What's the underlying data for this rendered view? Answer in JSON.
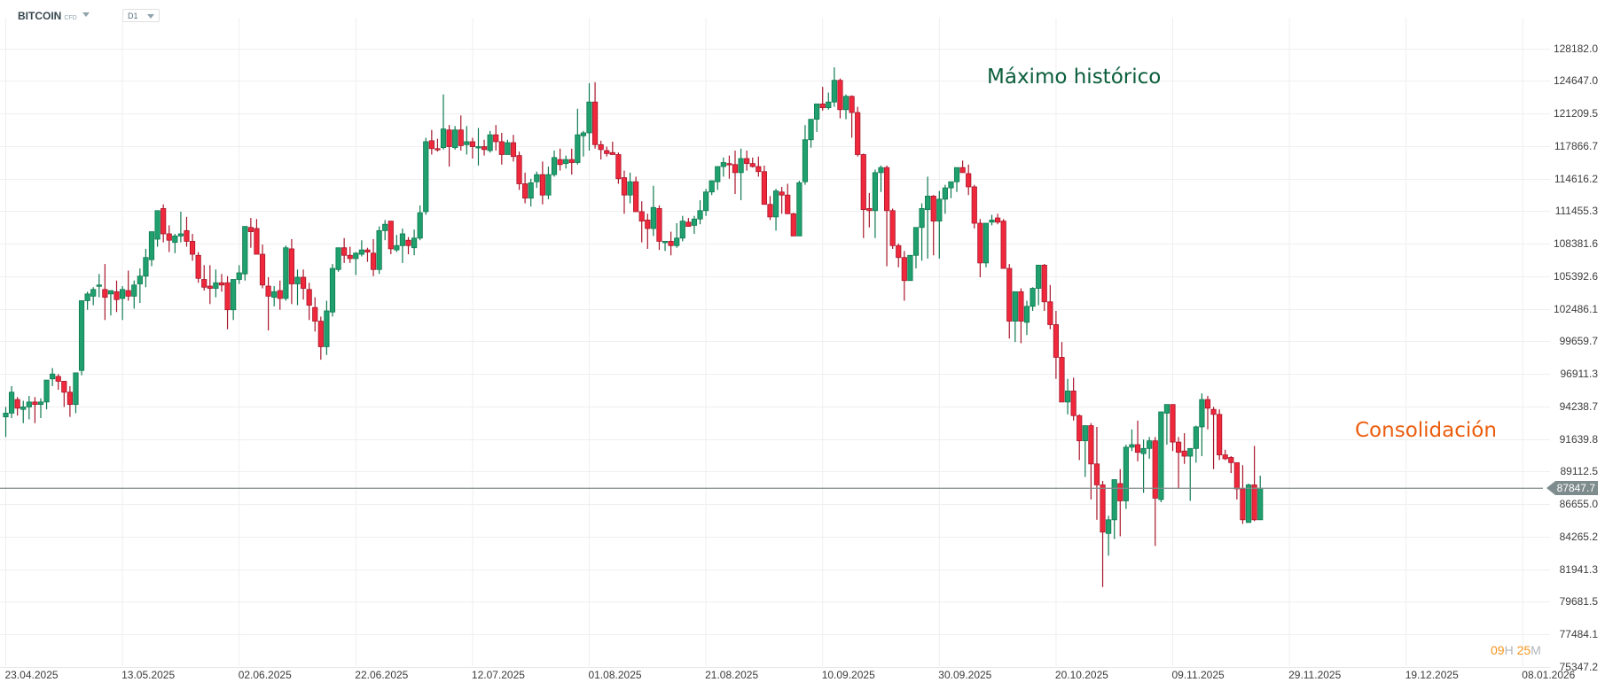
{
  "header": {
    "symbol": "BITCOIN",
    "symbol_type": "CFD",
    "timeframe": "D1"
  },
  "colors": {
    "bull": "#1fa06e",
    "bull_border": "#0f7a50",
    "bear": "#f0283c",
    "bear_border": "#a8172b",
    "grid": "#efefef",
    "price_line": "#7f8c8d",
    "annotation_high": "#0a5e3c",
    "annotation_consolidation": "#ec5d0e",
    "countdown_number": "#f7941d"
  },
  "annotations": {
    "ath": "Máximo histórico",
    "consolidation": "Consolidación"
  },
  "current_price": "87847.7",
  "countdown": {
    "h_num": "09",
    "h_unit": "H",
    "m_num": "25",
    "m_unit": "M"
  },
  "chart_data": {
    "type": "candlestick",
    "title": "BITCOIN CFD D1",
    "xlabel": "",
    "ylabel": "",
    "scale": "log",
    "ylim": [
      75347.2,
      128182.0
    ],
    "y_ticks": [
      "128182.0",
      "124647.0",
      "121209.5",
      "117866.7",
      "114616.2",
      "111455.3",
      "108381.6",
      "105392.6",
      "102486.1",
      "99659.7",
      "96911.3",
      "94238.7",
      "91639.8",
      "89112.5",
      "86655.0",
      "84265.2",
      "81941.3",
      "79681.5",
      "77484.1",
      "75347.2"
    ],
    "x_ticks": [
      "23.04.2025",
      "13.05.2025",
      "02.06.2025",
      "22.06.2025",
      "12.07.2025",
      "01.08.2025",
      "21.08.2025",
      "10.09.2025",
      "30.09.2025",
      "20.10.2025",
      "09.11.2025",
      "29.11.2025",
      "19.12.2025",
      "08.01.2026"
    ],
    "last_close": 87847.7,
    "legend": [],
    "candles_ohlc": [
      [
        93400,
        94200,
        91800,
        93700
      ],
      [
        93700,
        95900,
        93300,
        95400
      ],
      [
        94800,
        95000,
        93500,
        94100
      ],
      [
        94000,
        94700,
        92900,
        94200
      ],
      [
        94200,
        95100,
        93200,
        94600
      ],
      [
        94600,
        95000,
        92900,
        94400
      ],
      [
        94400,
        94900,
        93300,
        94600
      ],
      [
        94600,
        96300,
        94000,
        96400
      ],
      [
        96500,
        97400,
        95900,
        96900
      ],
      [
        96700,
        96900,
        95600,
        96300
      ],
      [
        96300,
        96200,
        94200,
        95400
      ],
      [
        95400,
        95900,
        93400,
        94400
      ],
      [
        94400,
        97000,
        93700,
        97000
      ],
      [
        97200,
        103200,
        96800,
        103200
      ],
      [
        103200,
        104000,
        102400,
        103800
      ],
      [
        103600,
        104400,
        102800,
        104200
      ],
      [
        104500,
        105600,
        103500,
        104600
      ],
      [
        104200,
        106500,
        101500,
        103500
      ],
      [
        103800,
        104000,
        101900,
        104100
      ],
      [
        104000,
        105000,
        102200,
        103300
      ],
      [
        103400,
        104500,
        101500,
        104200
      ],
      [
        104100,
        105900,
        103200,
        103600
      ],
      [
        103600,
        105000,
        102500,
        104600
      ],
      [
        104700,
        106100,
        103000,
        105400
      ],
      [
        105400,
        107900,
        104400,
        107100
      ],
      [
        106900,
        108800,
        106300,
        109500
      ],
      [
        108800,
        111500,
        108100,
        111500
      ],
      [
        111700,
        112100,
        108500,
        109300
      ],
      [
        109300,
        110100,
        107600,
        108700
      ],
      [
        108500,
        109300,
        107500,
        109100
      ],
      [
        109100,
        111400,
        108500,
        109300
      ],
      [
        109600,
        110900,
        108100,
        108600
      ],
      [
        108600,
        109300,
        106800,
        107400
      ],
      [
        107300,
        107600,
        104800,
        105200
      ],
      [
        105100,
        106400,
        104100,
        104400
      ],
      [
        104500,
        106400,
        102900,
        104300
      ],
      [
        104300,
        106000,
        103500,
        104800
      ],
      [
        104800,
        105600,
        104000,
        104600
      ],
      [
        104800,
        105400,
        100700,
        102400
      ],
      [
        102400,
        104800,
        101500,
        105100
      ],
      [
        105100,
        106400,
        104700,
        105700
      ],
      [
        105600,
        109800,
        105000,
        110000
      ],
      [
        109900,
        110800,
        108000,
        109500
      ],
      [
        109800,
        110700,
        107800,
        107400
      ],
      [
        107400,
        108300,
        104300,
        104600
      ],
      [
        104500,
        105300,
        100600,
        103600
      ],
      [
        103500,
        104500,
        102700,
        104000
      ],
      [
        104100,
        105000,
        102400,
        103400
      ],
      [
        103400,
        108200,
        103200,
        108000
      ],
      [
        107900,
        108800,
        102900,
        104700
      ],
      [
        104700,
        106000,
        102800,
        105300
      ],
      [
        105300,
        106000,
        103300,
        104300
      ],
      [
        104200,
        104800,
        101500,
        102800
      ],
      [
        102600,
        103500,
        100500,
        101400
      ],
      [
        101400,
        101800,
        98100,
        99200
      ],
      [
        99200,
        103200,
        98500,
        102300
      ],
      [
        102200,
        106500,
        101800,
        106100
      ],
      [
        106000,
        107800,
        105800,
        108000
      ],
      [
        108000,
        108900,
        106600,
        107300
      ],
      [
        107300,
        108100,
        106600,
        107000
      ],
      [
        107000,
        107600,
        105500,
        107500
      ],
      [
        107400,
        108700,
        107200,
        107800
      ],
      [
        107800,
        108000,
        106700,
        107600
      ],
      [
        107500,
        108800,
        105400,
        106000
      ],
      [
        106000,
        110000,
        105600,
        109600
      ],
      [
        109600,
        110600,
        108700,
        110200
      ],
      [
        110500,
        110500,
        107400,
        107900
      ],
      [
        107800,
        109200,
        107600,
        108200
      ],
      [
        108200,
        109800,
        106600,
        109300
      ],
      [
        108700,
        109000,
        107400,
        108200
      ],
      [
        108000,
        109700,
        107300,
        108900
      ],
      [
        108900,
        112000,
        108700,
        111300
      ],
      [
        111400,
        118700,
        111100,
        118300
      ],
      [
        118400,
        119500,
        117000,
        117600
      ],
      [
        117600,
        118600,
        117300,
        117500
      ],
      [
        117700,
        123200,
        117500,
        119600
      ],
      [
        119500,
        120000,
        115800,
        117800
      ],
      [
        117700,
        119900,
        117500,
        119500
      ],
      [
        119500,
        121000,
        117400,
        117900
      ],
      [
        118000,
        119900,
        117000,
        118300
      ],
      [
        118300,
        118700,
        116600,
        117800
      ],
      [
        117800,
        119700,
        115900,
        117800
      ],
      [
        117800,
        118500,
        116900,
        117500
      ],
      [
        117400,
        119400,
        117200,
        119000
      ],
      [
        119000,
        120000,
        117400,
        118300
      ],
      [
        118300,
        119200,
        116000,
        117000
      ],
      [
        117000,
        118500,
        117000,
        118200
      ],
      [
        118200,
        119000,
        116300,
        116800
      ],
      [
        116900,
        117300,
        113500,
        114100
      ],
      [
        114100,
        115200,
        112200,
        112700
      ],
      [
        112700,
        114600,
        111900,
        114200
      ],
      [
        114300,
        115300,
        113700,
        115000
      ],
      [
        115000,
        116300,
        112100,
        113000
      ],
      [
        113000,
        115800,
        112600,
        115000
      ],
      [
        115000,
        117400,
        114800,
        116700
      ],
      [
        116500,
        117600,
        115400,
        116000
      ],
      [
        116100,
        116900,
        115600,
        116500
      ],
      [
        116500,
        117600,
        115000,
        116200
      ],
      [
        116200,
        121700,
        116000,
        119000
      ],
      [
        118900,
        119400,
        116800,
        119200
      ],
      [
        119200,
        124400,
        117400,
        122400
      ],
      [
        122400,
        124500,
        117600,
        118000
      ],
      [
        118000,
        118400,
        116500,
        117500
      ],
      [
        117400,
        117800,
        116800,
        117100
      ],
      [
        117200,
        118300,
        117000,
        117000
      ],
      [
        117000,
        117200,
        114100,
        114600
      ],
      [
        114700,
        115400,
        111200,
        113000
      ],
      [
        113000,
        115200,
        112200,
        114300
      ],
      [
        114300,
        114800,
        111600,
        111400
      ],
      [
        111400,
        112400,
        108500,
        110500
      ],
      [
        110600,
        111200,
        107900,
        109800
      ],
      [
        109800,
        113900,
        109100,
        111800
      ],
      [
        111700,
        112000,
        107800,
        108600
      ],
      [
        108600,
        108600,
        107700,
        108600
      ],
      [
        108600,
        109500,
        107300,
        108200
      ],
      [
        108200,
        110300,
        108000,
        108900
      ],
      [
        108900,
        111000,
        108600,
        110500
      ],
      [
        110400,
        110800,
        110000,
        110000
      ],
      [
        110100,
        111000,
        109300,
        110700
      ],
      [
        110700,
        112500,
        110200,
        111500
      ],
      [
        111500,
        113600,
        111000,
        113300
      ],
      [
        113300,
        114300,
        113000,
        114400
      ],
      [
        114300,
        115200,
        113500,
        115800
      ],
      [
        115800,
        116700,
        114800,
        116200
      ],
      [
        116100,
        116900,
        114600,
        116000
      ],
      [
        116000,
        117400,
        113100,
        115200
      ],
      [
        115200,
        117600,
        112500,
        116600
      ],
      [
        116600,
        117400,
        115400,
        116100
      ],
      [
        116100,
        116700,
        115700,
        115800
      ],
      [
        115800,
        116800,
        114800,
        115300
      ],
      [
        115300,
        115900,
        113800,
        112100
      ],
      [
        112100,
        112900,
        110600,
        110900
      ],
      [
        110900,
        113600,
        109600,
        113400
      ],
      [
        113300,
        113800,
        111200,
        113000
      ],
      [
        113000,
        114100,
        111600,
        111200
      ],
      [
        111200,
        111300,
        109200,
        109100
      ],
      [
        109100,
        114400,
        109100,
        114200
      ],
      [
        114300,
        120000,
        114000,
        118500
      ],
      [
        118500,
        120600,
        117700,
        120600
      ],
      [
        120600,
        121700,
        119300,
        122200
      ],
      [
        122200,
        124000,
        121500,
        121800
      ],
      [
        121800,
        123400,
        121600,
        122400
      ],
      [
        122400,
        126100,
        121900,
        124700
      ],
      [
        124700,
        124900,
        120700,
        121600
      ],
      [
        121600,
        123200,
        120600,
        123000
      ],
      [
        123000,
        123100,
        118700,
        121300
      ],
      [
        121300,
        121900,
        116800,
        117000
      ],
      [
        117000,
        117100,
        108900,
        111600
      ],
      [
        111700,
        113200,
        109900,
        111500
      ],
      [
        111500,
        115500,
        108900,
        115200
      ],
      [
        115200,
        115900,
        113300,
        115700
      ],
      [
        115700,
        115900,
        106300,
        111500
      ],
      [
        111500,
        111700,
        107900,
        108200
      ],
      [
        108200,
        108400,
        106200,
        107100
      ],
      [
        107100,
        107700,
        103200,
        105000
      ],
      [
        105000,
        106900,
        105400,
        107300
      ],
      [
        107300,
        109500,
        106100,
        109900
      ],
      [
        109900,
        112200,
        106800,
        111700
      ],
      [
        111600,
        114800,
        107000,
        112900
      ],
      [
        112900,
        113000,
        107300,
        110500
      ],
      [
        110500,
        113400,
        107000,
        112600
      ],
      [
        112600,
        114000,
        111200,
        113700
      ],
      [
        113700,
        114300,
        112700,
        114300
      ],
      [
        114300,
        115700,
        113300,
        115700
      ],
      [
        115700,
        116400,
        115200,
        115200
      ],
      [
        115100,
        116000,
        113000,
        113800
      ],
      [
        113800,
        114000,
        109800,
        110300
      ],
      [
        110300,
        110700,
        105300,
        106600
      ],
      [
        106600,
        110300,
        106200,
        110300
      ],
      [
        110400,
        111100,
        110100,
        110600
      ],
      [
        110800,
        111200,
        110200,
        110400
      ],
      [
        110500,
        110700,
        107200,
        106100
      ],
      [
        106100,
        106500,
        99900,
        101400
      ],
      [
        101400,
        104000,
        99600,
        104000
      ],
      [
        104000,
        104300,
        99500,
        101400
      ],
      [
        101300,
        103200,
        100200,
        102700
      ],
      [
        102700,
        104400,
        102300,
        104300
      ],
      [
        104300,
        106200,
        102800,
        106400
      ],
      [
        106400,
        106500,
        102300,
        103100
      ],
      [
        103100,
        104600,
        100700,
        101100
      ],
      [
        101100,
        102300,
        96500,
        98300
      ],
      [
        98300,
        99600,
        96300,
        94600
      ],
      [
        94600,
        96500,
        93600,
        95500
      ],
      [
        95500,
        96600,
        93100,
        93500
      ],
      [
        93500,
        93600,
        90000,
        91500
      ],
      [
        91500,
        92700,
        88700,
        92700
      ],
      [
        92700,
        92900,
        87000,
        89700
      ],
      [
        89700,
        92600,
        85500,
        88100
      ],
      [
        88100,
        88400,
        80700,
        84600
      ],
      [
        84500,
        85800,
        82900,
        85500
      ],
      [
        85500,
        87400,
        84100,
        88500
      ],
      [
        88200,
        89300,
        84300,
        86900
      ],
      [
        86900,
        91200,
        86300,
        91000
      ],
      [
        91000,
        92400,
        90700,
        91200
      ],
      [
        91200,
        93100,
        89900,
        90600
      ],
      [
        90500,
        91600,
        87500,
        90900
      ],
      [
        90900,
        91800,
        90100,
        91500
      ],
      [
        91500,
        91800,
        83600,
        87100
      ],
      [
        87000,
        93800,
        86800,
        93800
      ],
      [
        93700,
        94300,
        91200,
        94400
      ],
      [
        94400,
        94200,
        90700,
        91400
      ],
      [
        91400,
        91800,
        87800,
        90600
      ],
      [
        90700,
        92100,
        89700,
        90300
      ],
      [
        90300,
        90700,
        86900,
        90900
      ],
      [
        90900,
        92700,
        89800,
        92600
      ],
      [
        92600,
        95300,
        90300,
        94800
      ],
      [
        94800,
        95100,
        92400,
        94100
      ],
      [
        94000,
        94200,
        89300,
        93600
      ],
      [
        93600,
        94000,
        90000,
        90400
      ],
      [
        90400,
        90800,
        90000,
        90100
      ],
      [
        90200,
        90300,
        89000,
        89800
      ],
      [
        89800,
        89800,
        87000,
        87800
      ],
      [
        87800,
        89600,
        85200,
        85500
      ],
      [
        85300,
        88200,
        85300,
        88100
      ],
      [
        88100,
        91100,
        85400,
        85500
      ],
      [
        85500,
        88800,
        86100,
        87848
      ]
    ]
  }
}
